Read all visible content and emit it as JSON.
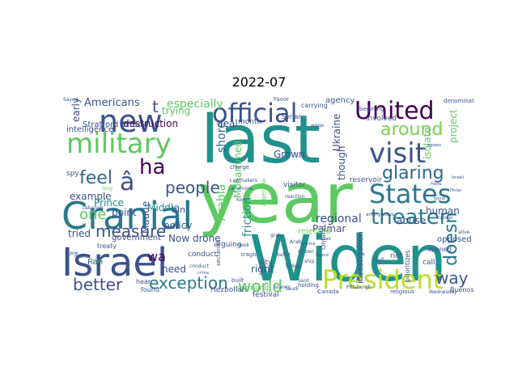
{
  "title": "2022-07",
  "words": [
    {
      "text": "last",
      "color": "#21918c"
    },
    {
      "text": "year",
      "color": "#5ec962"
    },
    {
      "text": "Widen",
      "color": "#21918c"
    },
    {
      "text": "Israel",
      "color": "#3b528b"
    },
    {
      "text": "Cranial",
      "color": "#2a788e"
    },
    {
      "text": "new",
      "color": "#3b528b"
    },
    {
      "text": "military",
      "color": "#5ec962"
    },
    {
      "text": "official",
      "color": "#3b528b"
    },
    {
      "text": "United",
      "color": "#440154"
    },
    {
      "text": "visit",
      "color": "#3b528b"
    },
    {
      "text": "States",
      "color": "#2a788e"
    },
    {
      "text": "theater",
      "color": "#2a788e"
    },
    {
      "text": "President",
      "color": "#bddf26"
    },
    {
      "text": "around",
      "color": "#7ad151"
    },
    {
      "text": "glaring",
      "color": "#31688e"
    },
    {
      "text": "â",
      "color": "#3b528b"
    },
    {
      "text": "ha",
      "color": "#440154"
    },
    {
      "text": "t",
      "color": "#3b528b"
    },
    {
      "text": "one",
      "color": "#5ec962"
    },
    {
      "text": "feel",
      "color": "#31688e"
    },
    {
      "text": "measure",
      "color": "#3b528b"
    },
    {
      "text": "people",
      "color": "#3b528b"
    },
    {
      "text": "better",
      "color": "#3b528b"
    },
    {
      "text": "exception",
      "color": "#2a788e"
    },
    {
      "text": "world",
      "color": "#5ec962"
    },
    {
      "text": "way",
      "color": "#3b528b"
    },
    {
      "text": "doesn",
      "color": "#2a788e"
    },
    {
      "text": "Americans",
      "color": "#3b528b"
    },
    {
      "text": "especially",
      "color": "#5ec962"
    },
    {
      "text": "trying",
      "color": "#5ec962"
    },
    {
      "text": "destruction",
      "color": "#440154"
    },
    {
      "text": "Middle",
      "color": "#21918c"
    },
    {
      "text": "bin",
      "color": "#3b528b"
    },
    {
      "text": "point",
      "color": "#3b528b"
    },
    {
      "text": "example",
      "color": "#3b528b"
    },
    {
      "text": "Prince",
      "color": "#21918c"
    },
    {
      "text": "policy",
      "color": "#3b528b"
    },
    {
      "text": "Maude",
      "color": "#3b528b"
    },
    {
      "text": "wa",
      "color": "#440154"
    },
    {
      "text": "tried",
      "color": "#3b528b"
    },
    {
      "text": "Now drone",
      "color": "#3b528b"
    },
    {
      "text": "Arabia",
      "color": "#5ec962"
    },
    {
      "text": "Mohammed",
      "color": "#5ec962"
    },
    {
      "text": "shore",
      "color": "#31688e"
    },
    {
      "text": "Grown",
      "color": "#3b528b"
    },
    {
      "text": "friction",
      "color": "#21918c"
    },
    {
      "text": "Ukraine",
      "color": "#3b528b"
    },
    {
      "text": "though",
      "color": "#3b528b"
    },
    {
      "text": "regional",
      "color": "#3b528b"
    },
    {
      "text": "Palmar",
      "color": "#3b528b"
    },
    {
      "text": "human",
      "color": "#3b528b"
    },
    {
      "text": "opposed",
      "color": "#3b528b"
    },
    {
      "text": "abuse",
      "color": "#3b528b"
    },
    {
      "text": "isolate",
      "color": "#5ec962"
    },
    {
      "text": "project",
      "color": "#5ec962"
    },
    {
      "text": "need",
      "color": "#3b528b"
    },
    {
      "text": "right",
      "color": "#3b528b"
    },
    {
      "text": "early",
      "color": "#3b528b"
    },
    {
      "text": "agency",
      "color": "#3b528b"
    },
    {
      "text": "deal",
      "color": "#3b528b"
    },
    {
      "text": "month",
      "color": "#3b528b"
    },
    {
      "text": "Stratford attack",
      "color": "#3b528b"
    },
    {
      "text": "intelligence",
      "color": "#3b528b"
    },
    {
      "text": "government",
      "color": "#3b528b"
    },
    {
      "text": "treaty",
      "color": "#3b528b"
    },
    {
      "text": "conduct",
      "color": "#3b528b"
    },
    {
      "text": "arguing",
      "color": "#3b528b"
    },
    {
      "text": "visitor",
      "color": "#3b528b"
    },
    {
      "text": "rejected",
      "color": "#7ad151"
    },
    {
      "text": "investigation",
      "color": "#3b528b"
    },
    {
      "text": "reservoir",
      "color": "#3b528b"
    },
    {
      "text": "involved",
      "color": "#3b528b"
    },
    {
      "text": "carrying",
      "color": "#3b528b"
    },
    {
      "text": "Syrian",
      "color": "#3b528b"
    },
    {
      "text": "festival",
      "color": "#3b528b"
    },
    {
      "text": "Hezbollah",
      "color": "#3b528b"
    },
    {
      "text": "surround",
      "color": "#5ec962"
    },
    {
      "text": "city",
      "color": "#3b528b"
    },
    {
      "text": "found",
      "color": "#3b528b"
    },
    {
      "text": "hear",
      "color": "#3b528b"
    },
    {
      "text": "Ran",
      "color": "#3b528b"
    },
    {
      "text": "spy",
      "color": "#3b528b"
    },
    {
      "text": "Canada",
      "color": "#3b528b"
    },
    {
      "text": "Buenos",
      "color": "#3b528b"
    },
    {
      "text": "opened",
      "color": "#3b528b"
    },
    {
      "text": "call",
      "color": "#3b528b"
    },
    {
      "text": "riot",
      "color": "#3b528b"
    },
    {
      "text": "prioritizes",
      "color": "#3b528b"
    },
    {
      "text": "Ontario",
      "color": "#3b528b"
    },
    {
      "text": "Wednesday",
      "color": "#3b528b"
    },
    {
      "text": "religious",
      "color": "#3b528b"
    },
    {
      "text": "holding",
      "color": "#3b528b"
    },
    {
      "text": "denomination",
      "color": "#3b528b"
    },
    {
      "text": "begining",
      "color": "#3b528b"
    },
    {
      "text": "Favor",
      "color": "#3b528b"
    },
    {
      "text": "Lebanon",
      "color": "#3b528b"
    },
    {
      "text": "Pittsburgh",
      "color": "#3b528b"
    },
    {
      "text": "Argentina",
      "color": "#5ec962"
    },
    {
      "text": "tragic",
      "color": "#3b528b"
    },
    {
      "text": "built",
      "color": "#3b528b"
    },
    {
      "text": "sectarian",
      "color": "#3b528b"
    },
    {
      "text": "charge",
      "color": "#3b528b"
    },
    {
      "text": "Lawmakers",
      "color": "#3b528b"
    },
    {
      "text": "Landmine",
      "color": "#3b528b"
    },
    {
      "text": "reaction",
      "color": "#3b528b"
    },
    {
      "text": "Kom",
      "color": "#3b528b"
    },
    {
      "text": "citizen",
      "color": "#3b528b"
    },
    {
      "text": "seek",
      "color": "#3b528b"
    },
    {
      "text": "ballot",
      "color": "#3b528b"
    },
    {
      "text": "anonymous",
      "color": "#3b528b"
    },
    {
      "text": "alive",
      "color": "#3b528b"
    },
    {
      "text": "Sant",
      "color": "#3b528b"
    },
    {
      "text": "Turkey",
      "color": "#3b528b"
    },
    {
      "text": "wage",
      "color": "#3b528b"
    },
    {
      "text": "Sayed",
      "color": "#3b528b"
    },
    {
      "text": "long",
      "color": "#5ec962"
    },
    {
      "text": "Iran",
      "color": "#5ec962"
    },
    {
      "text": "Jew",
      "color": "#3b528b"
    },
    {
      "text": "Hebrew",
      "color": "#3b528b"
    },
    {
      "text": "conduct",
      "color": "#3b528b"
    },
    {
      "text": "Islamic",
      "color": "#3b528b"
    },
    {
      "text": "Saudi",
      "color": "#3b528b"
    },
    {
      "text": "crime",
      "color": "#3b528b"
    },
    {
      "text": "grab",
      "color": "#3b528b"
    },
    {
      "text": "ship",
      "color": "#3b528b"
    },
    {
      "text": "Spend",
      "color": "#3b528b"
    },
    {
      "text": "agrees",
      "color": "#3b528b"
    },
    {
      "text": "bomb",
      "color": "#3b528b"
    },
    {
      "text": "Pinter",
      "color": "#3b528b"
    },
    {
      "text": "Haifa",
      "color": "#3b528b"
    },
    {
      "text": "Israeli",
      "color": "#3b528b"
    },
    {
      "text": "Cabinet",
      "color": "#3b528b"
    },
    {
      "text": "regime",
      "color": "#3b528b"
    },
    {
      "text": "lead",
      "color": "#3b528b"
    },
    {
      "text": "Arab",
      "color": "#3b528b"
    },
    {
      "text": "Quit",
      "color": "#3b528b"
    }
  ]
}
